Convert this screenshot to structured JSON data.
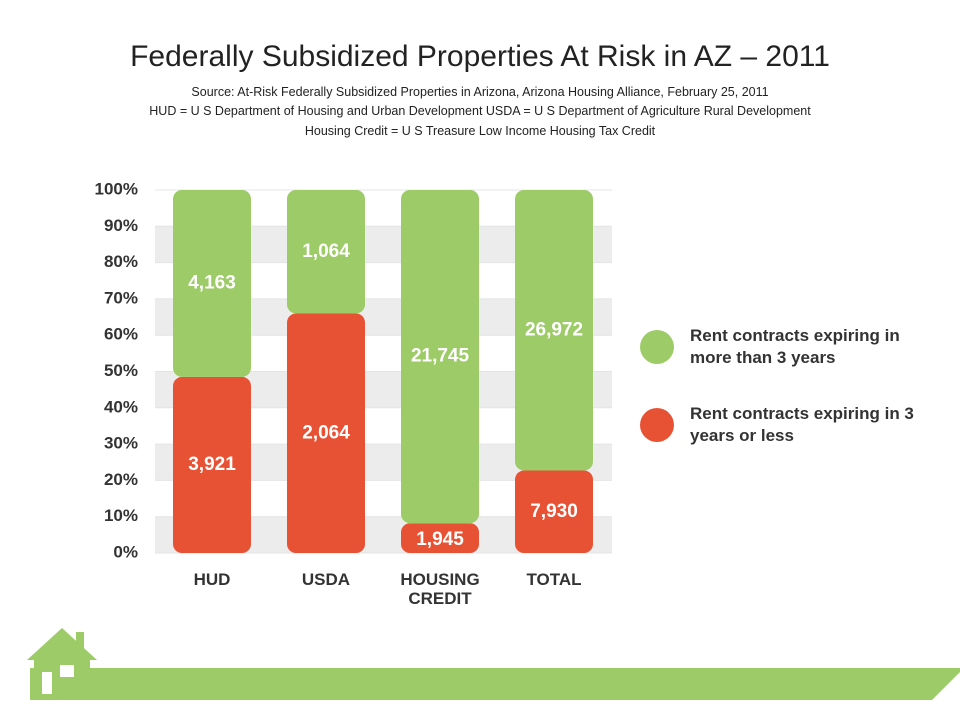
{
  "chart_data": {
    "type": "stacked_percent_bar",
    "title": "Federally Subsidized Properties At Risk in AZ – 2011",
    "subtitle": [
      "Source: At-Risk Federally Subsidized Properties in Arizona, Arizona Housing Alliance, February 25, 2011",
      "HUD = U S Department of Housing and Urban Development USDA = U S Department of Agriculture Rural Development",
      "Housing Credit = U S Treasure Low Income Housing Tax Credit"
    ],
    "categories": [
      "HUD",
      "USDA",
      "HOUSING CREDIT",
      "TOTAL"
    ],
    "series": [
      {
        "name": "Rent contracts expiring in 3 years or less",
        "color": "#e85234",
        "values": [
          3921,
          2064,
          1945,
          7930
        ],
        "value_labels": [
          "3,921",
          "2,064",
          "1,945",
          "7,930"
        ]
      },
      {
        "name": "Rent contracts expiring in more than 3 years",
        "color": "#9dcb67",
        "values": [
          4163,
          1064,
          21745,
          26972
        ],
        "value_labels": [
          "4,163",
          "1,064",
          "21,745",
          "26,972"
        ]
      }
    ],
    "ylim": [
      0,
      100
    ],
    "yticks": [
      {
        "value": 0,
        "label": "0%"
      },
      {
        "value": 10,
        "label": "10%"
      },
      {
        "value": 20,
        "label": "20%"
      },
      {
        "value": 30,
        "label": "30%"
      },
      {
        "value": 40,
        "label": "40%"
      },
      {
        "value": 50,
        "label": "50%"
      },
      {
        "value": 60,
        "label": "60%"
      },
      {
        "value": 70,
        "label": "70%"
      },
      {
        "value": 80,
        "label": "80%"
      },
      {
        "value": 90,
        "label": "90%"
      },
      {
        "value": 100,
        "label": "100%"
      }
    ],
    "grid": true
  }
}
